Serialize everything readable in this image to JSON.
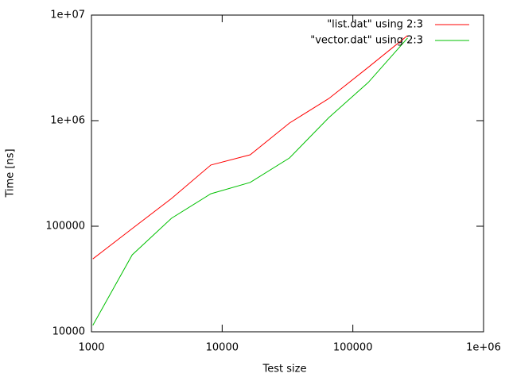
{
  "chart_data": {
    "type": "line",
    "xlabel": "Test size",
    "ylabel": "Time [ns]",
    "x": [
      1024,
      2048,
      4096,
      8192,
      16384,
      32768,
      65536,
      131072,
      262144
    ],
    "series": [
      {
        "name": "\"list.dat\" using 2:3",
        "color": "#ff0000",
        "values": [
          49000,
          95000,
          183000,
          380000,
          475000,
          950000,
          1620000,
          3200000,
          6400000
        ]
      },
      {
        "name": "\"vector.dat\" using 2:3",
        "color": "#00c000",
        "values": [
          11500,
          53500,
          119000,
          203000,
          260000,
          443000,
          1070000,
          2300000,
          6050000
        ]
      }
    ],
    "xlog": true,
    "ylog": true,
    "xlim": [
      1000,
      1000000
    ],
    "ylim": [
      10000,
      10000000
    ],
    "xticks": [
      1000,
      10000,
      100000,
      {
        "value": 1000000,
        "label": "1e+06"
      }
    ],
    "yticks": [
      10000,
      100000,
      {
        "value": 1000000,
        "label": "1e+06"
      },
      {
        "value": 10000000,
        "label": "1e+07"
      }
    ],
    "legend": "upper-right"
  }
}
